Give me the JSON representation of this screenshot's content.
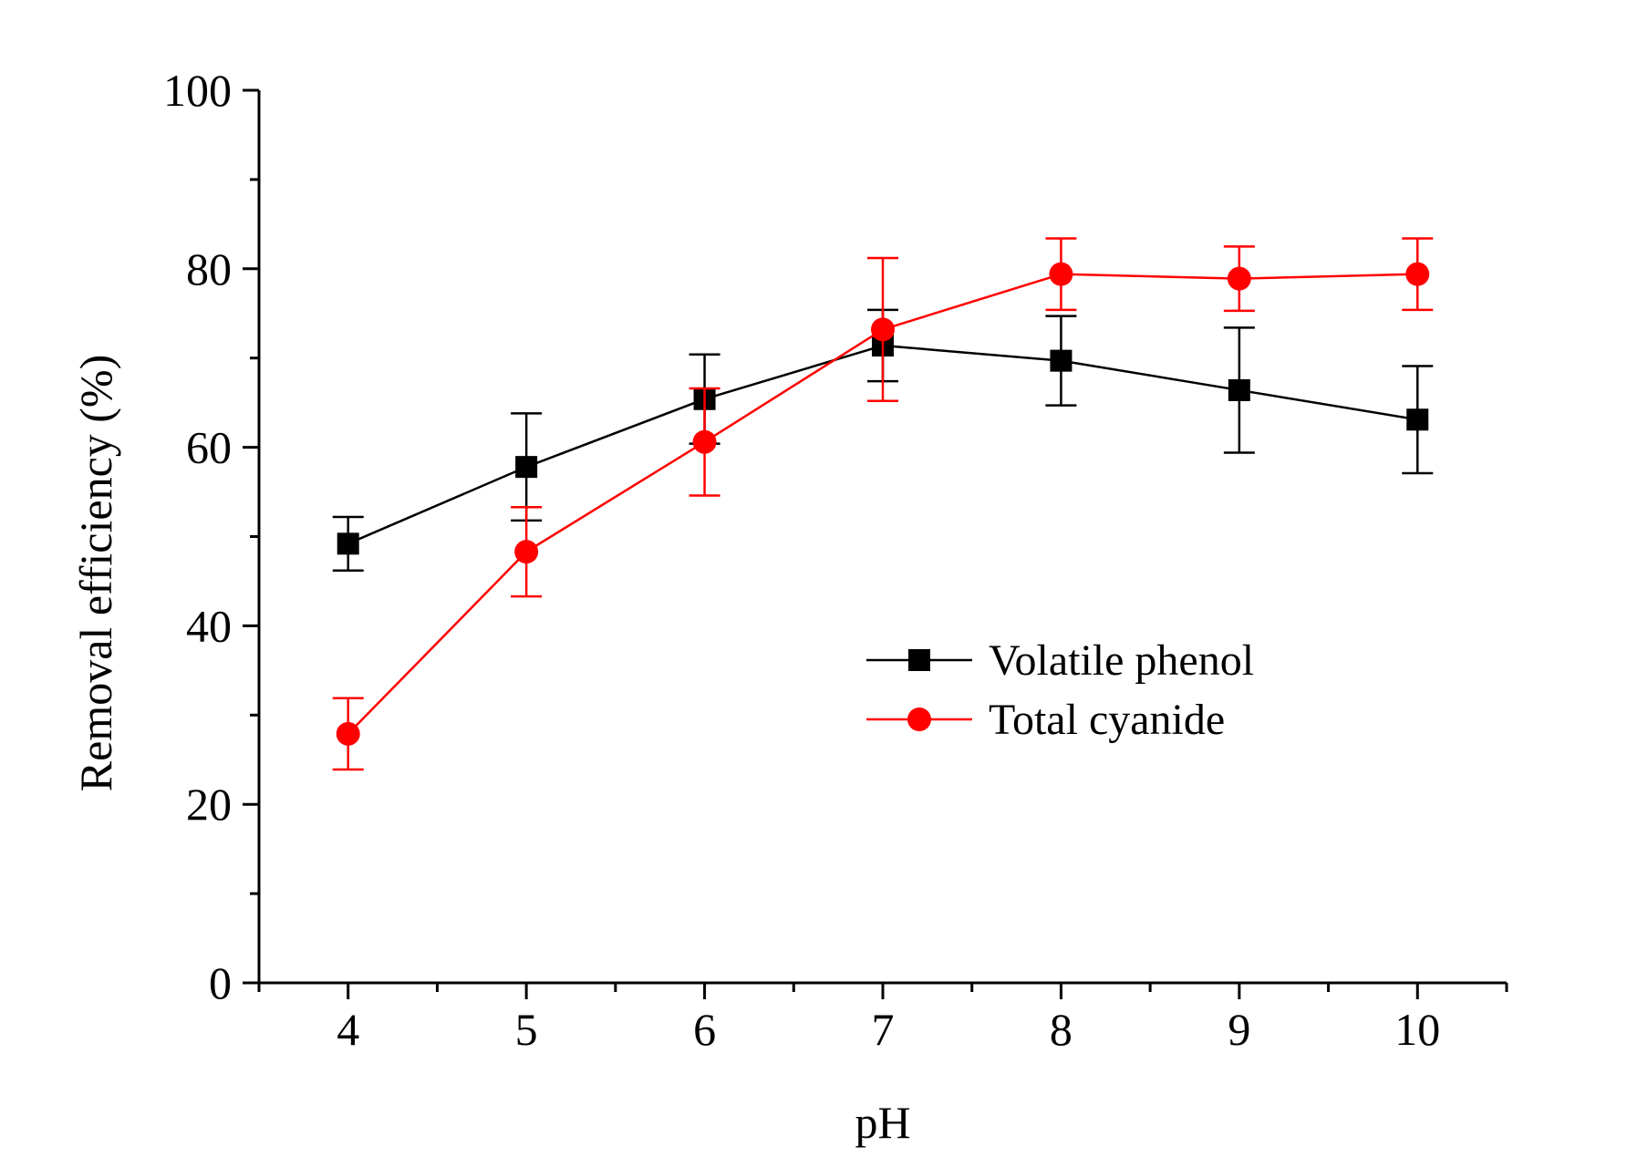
{
  "chart_data": {
    "type": "line",
    "title": "",
    "xlabel": "pH",
    "ylabel": "Removal efficiency (%)",
    "xlim": [
      3.5,
      10.5
    ],
    "ylim": [
      0,
      100
    ],
    "xticks": [
      4,
      5,
      6,
      7,
      8,
      9,
      10
    ],
    "xtick_labels": [
      "4",
      "5",
      "6",
      "7",
      "8",
      "9",
      "10"
    ],
    "yticks": [
      0,
      20,
      40,
      60,
      80,
      100
    ],
    "ytick_labels": [
      "0",
      "20",
      "40",
      "60",
      "80",
      "100"
    ],
    "grid": false,
    "legend_position": "center-right",
    "series": [
      {
        "name": "Volatile phenol",
        "color": "#000000",
        "marker": "square",
        "x": [
          4,
          5,
          6,
          7,
          8,
          9,
          10
        ],
        "values": [
          49.2,
          57.8,
          65.4,
          71.4,
          69.7,
          66.4,
          63.1
        ],
        "errors": [
          3.0,
          6.0,
          5.0,
          4.0,
          5.0,
          7.0,
          6.0
        ]
      },
      {
        "name": "Total cyanide",
        "color": "#ff0000",
        "marker": "circle",
        "x": [
          4,
          5,
          6,
          7,
          8,
          9,
          10
        ],
        "values": [
          27.9,
          48.3,
          60.6,
          73.2,
          79.4,
          78.9,
          79.4
        ],
        "errors": [
          4.0,
          5.0,
          6.0,
          8.0,
          4.0,
          3.6,
          4.0
        ]
      }
    ]
  }
}
